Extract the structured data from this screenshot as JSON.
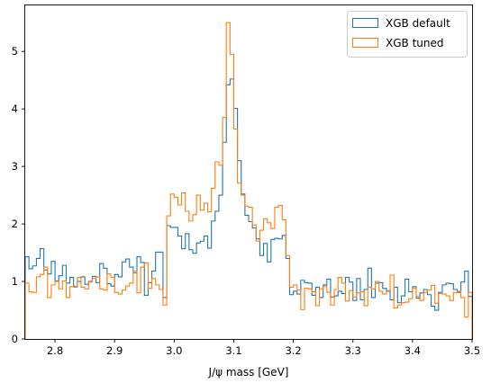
{
  "chart_data": {
    "type": "histogram",
    "xlabel": "J/ψ mass [GeV]",
    "xlim": [
      2.75,
      3.5
    ],
    "ylim": [
      0,
      5.8
    ],
    "bin_width": 0.00625,
    "x_start": 2.75,
    "x_ticks": [
      "2.8",
      "2.9",
      "3.0",
      "3.1",
      "3.2",
      "3.3",
      "3.4",
      "3.5"
    ],
    "y_ticks": [
      "0",
      "1",
      "2",
      "3",
      "4",
      "5"
    ],
    "legend_position": "top-right",
    "grid": false,
    "series": [
      {
        "name": "XGB default",
        "color": "#1f77b4",
        "values": [
          1.43,
          1.22,
          1.27,
          1.4,
          1.57,
          1.2,
          1.13,
          1.35,
          1.01,
          1.1,
          1.28,
          0.97,
          1.07,
          0.91,
          1.0,
          1.08,
          0.95,
          1.0,
          1.09,
          0.98,
          1.31,
          1.23,
          0.96,
          0.92,
          1.12,
          1.08,
          1.34,
          1.39,
          1.25,
          1.15,
          1.43,
          1.33,
          0.76,
          0.98,
          1.18,
          1.51,
          1.51,
          0.72,
          1.97,
          1.94,
          1.94,
          1.79,
          1.57,
          1.83,
          1.55,
          1.49,
          1.67,
          1.7,
          1.79,
          1.58,
          2.05,
          2.22,
          2.5,
          3.42,
          4.42,
          4.52,
          4.01,
          3.1,
          2.52,
          2.15,
          2.04,
          1.93,
          1.74,
          1.45,
          1.66,
          1.34,
          1.73,
          1.75,
          1.74,
          1.8,
          1.4,
          0.77,
          0.83,
          0.78,
          1.02,
          0.98,
          0.97,
          0.76,
          0.9,
          0.72,
          0.94,
          1.04,
          0.73,
          0.75,
          0.83,
          0.79,
          1.07,
          0.99,
          0.67,
          1.05,
          0.68,
          0.86,
          1.23,
          0.72,
          0.97,
          0.98,
          0.88,
          0.83,
          0.68,
          0.9,
          0.63,
          0.75,
          1.04,
          0.82,
          0.91,
          0.71,
          0.8,
          0.86,
          0.77,
          0.57,
          0.5,
          0.81,
          0.94,
          0.97,
          0.96,
          0.86,
          0.81,
          0.99,
          1.18,
          0.74
        ]
      },
      {
        "name": "XGB tuned",
        "color": "#ff7f0e",
        "values": [
          0.97,
          0.82,
          0.81,
          1.08,
          1.12,
          1.25,
          0.72,
          0.94,
          1.0,
          0.87,
          1.01,
          0.72,
          0.91,
          0.9,
          1.07,
          0.9,
          0.87,
          0.99,
          1.05,
          1.08,
          0.87,
          0.85,
          1.13,
          1.07,
          0.81,
          0.78,
          0.85,
          0.92,
          0.97,
          1.18,
          0.8,
          1.25,
          1.32,
          0.88,
          1.05,
          0.94,
          0.86,
          0.59,
          2.14,
          2.52,
          2.46,
          2.33,
          2.54,
          2.22,
          2.05,
          2.16,
          2.5,
          2.24,
          2.36,
          2.21,
          2.62,
          3.08,
          3.02,
          3.85,
          5.5,
          4.95,
          3.65,
          2.71,
          2.5,
          2.31,
          2.29,
          1.98,
          1.7,
          1.89,
          2.09,
          2.02,
          1.92,
          2.29,
          2.32,
          2.07,
          1.45,
          0.9,
          0.94,
          0.85,
          0.51,
          0.88,
          0.87,
          0.82,
          0.58,
          0.87,
          0.92,
          0.81,
          0.59,
          0.86,
          1.07,
          0.97,
          0.66,
          0.84,
          0.73,
          0.8,
          0.82,
          0.58,
          0.9,
          0.87,
          1.0,
          0.83,
          0.78,
          0.84,
          1.11,
          0.54,
          0.59,
          0.63,
          0.64,
          0.7,
          0.88,
          0.74,
          0.67,
          0.81,
          0.85,
          0.93,
          0.62,
          0.79,
          0.78,
          0.75,
          0.67,
          0.81,
          0.83,
          0.72,
          0.38,
          0.81
        ]
      }
    ]
  }
}
